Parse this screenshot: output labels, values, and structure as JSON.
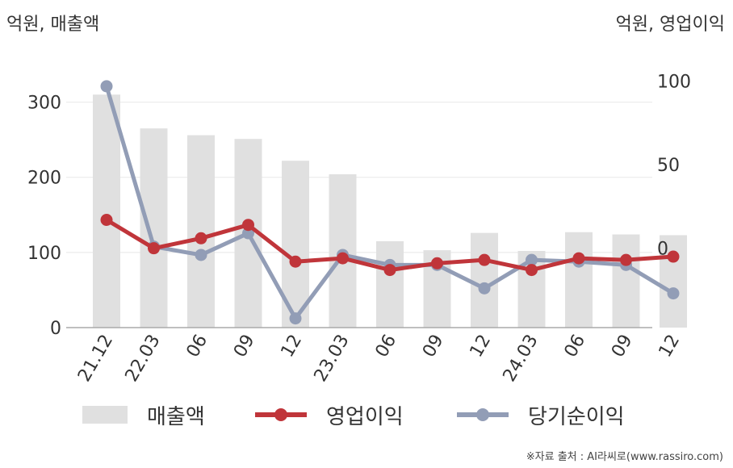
{
  "units": {
    "left": "억원, 매출액",
    "right": "억원, 영업이익"
  },
  "source": "※자료 출처 : AI라씨로(www.rassiro.com)",
  "colors": {
    "revenue": "#e0e0e0",
    "operating_profit": "#c0353a",
    "net_profit": "#929db6",
    "grid": "#e8e8e8",
    "axis": "#aaaaaa"
  },
  "chart_data": {
    "type": "bar",
    "categories": [
      "21.12",
      "22.03",
      "06",
      "09",
      "12",
      "23.03",
      "06",
      "09",
      "12",
      "24.03",
      "06",
      "09",
      "12"
    ],
    "y_left": {
      "ticks": [
        0,
        100,
        200,
        300
      ],
      "range": [
        0,
        350
      ]
    },
    "y_right": {
      "ticks": [
        0,
        50,
        100
      ],
      "range": [
        -47.5,
        110
      ]
    },
    "grid": true,
    "legend_position": "bottom",
    "series": [
      {
        "name": "매출액",
        "type": "bar",
        "axis": "left",
        "values": [
          310,
          265,
          256,
          251,
          222,
          204,
          115,
          103,
          126,
          102,
          127,
          124,
          123
        ]
      },
      {
        "name": "영업이익",
        "type": "line",
        "axis": "right",
        "values": [
          17,
          0,
          6,
          14,
          -8,
          -6,
          -13,
          -9,
          -7,
          -13,
          -6,
          -7,
          -5
        ]
      },
      {
        "name": "당기순이익",
        "type": "line",
        "axis": "right",
        "values": [
          97,
          1,
          -4,
          9,
          -42,
          -4,
          -10,
          -10,
          -24,
          -7,
          -8,
          -10,
          -27
        ]
      }
    ]
  }
}
